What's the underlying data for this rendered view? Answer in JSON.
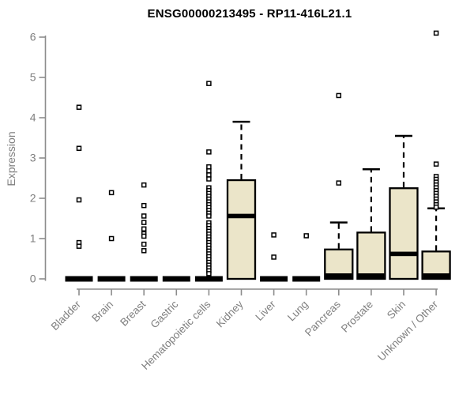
{
  "chart_data": {
    "type": "boxplot",
    "title": "ENSG00000213495 - RP11-416L21.1",
    "xlabel": "",
    "ylabel": "Expression",
    "ylim": [
      0,
      6
    ],
    "yticks": [
      0,
      1,
      2,
      3,
      4,
      5,
      6
    ],
    "grid": false,
    "legend": false,
    "outlier_marker": "open-square",
    "colors": {
      "box_fill": "#ebe5c9",
      "box_border": "#000000",
      "median": "#000000",
      "whisker": "#000000",
      "axis": "#8c8c8c",
      "tick_labels": "#7f7f7f",
      "title": "#000000",
      "outlier_fill": "#ffffff"
    },
    "categories": [
      "Bladder",
      "Brain",
      "Breast",
      "Gastric",
      "Hematopoietic cells",
      "Kidney",
      "Liver",
      "Lung",
      "Pancreas",
      "Prostate",
      "Skin",
      "Unknown / Other"
    ],
    "series": [
      {
        "label": "Bladder",
        "flat": true,
        "q1": 0,
        "median": 0,
        "q3": 0,
        "whisker_low": 0,
        "whisker_high": 0,
        "outliers": [
          4.26,
          3.24,
          1.96,
          0.9,
          0.81
        ]
      },
      {
        "label": "Brain",
        "flat": true,
        "q1": 0,
        "median": 0,
        "q3": 0,
        "whisker_low": 0,
        "whisker_high": 0,
        "outliers": [
          2.14,
          1.0
        ]
      },
      {
        "label": "Breast",
        "flat": true,
        "q1": 0,
        "median": 0,
        "q3": 0,
        "whisker_low": 0,
        "whisker_high": 0,
        "outliers": [
          2.33,
          1.82,
          1.56,
          1.4,
          1.24,
          1.12,
          1.06,
          0.86,
          0.7
        ]
      },
      {
        "label": "Gastric",
        "flat": true,
        "q1": 0,
        "median": 0,
        "q3": 0,
        "whisker_low": 0,
        "whisker_high": 0,
        "outliers": []
      },
      {
        "label": "Hematopoietic cells",
        "flat": true,
        "q1": 0,
        "median": 0,
        "q3": 0,
        "whisker_low": 0,
        "whisker_high": 0,
        "outliers": [
          4.85,
          3.15,
          2.78,
          2.68,
          2.58,
          2.48,
          2.26,
          2.19,
          2.12,
          2.05,
          1.98,
          1.91,
          1.84,
          1.77,
          1.7,
          1.63,
          1.56,
          1.39,
          1.32,
          1.25,
          1.18,
          1.11,
          1.04,
          0.97,
          0.9,
          0.83,
          0.76,
          0.69,
          0.62,
          0.55,
          0.48,
          0.41,
          0.34,
          0.27,
          0.2,
          0.13
        ]
      },
      {
        "label": "Kidney",
        "flat": false,
        "q1": 0,
        "median": 1.56,
        "q3": 2.45,
        "whisker_low": 0,
        "whisker_high": 3.9,
        "outliers": []
      },
      {
        "label": "Liver",
        "flat": true,
        "q1": 0,
        "median": 0,
        "q3": 0,
        "whisker_low": 0,
        "whisker_high": 0,
        "outliers": [
          1.09,
          0.54
        ]
      },
      {
        "label": "Lung",
        "flat": true,
        "q1": 0,
        "median": 0,
        "q3": 0,
        "whisker_low": 0,
        "whisker_high": 0,
        "outliers": [
          1.07
        ]
      },
      {
        "label": "Pancreas",
        "flat": false,
        "q1": 0,
        "median": 0.02,
        "q3": 0.73,
        "whisker_low": 0,
        "whisker_high": 1.4,
        "outliers": [
          4.55,
          2.38
        ]
      },
      {
        "label": "Prostate",
        "flat": false,
        "q1": 0,
        "median": 0.02,
        "q3": 1.15,
        "whisker_low": 0,
        "whisker_high": 2.72,
        "outliers": []
      },
      {
        "label": "Skin",
        "flat": false,
        "q1": 0,
        "median": 0.62,
        "q3": 2.25,
        "whisker_low": 0,
        "whisker_high": 3.55,
        "outliers": []
      },
      {
        "label": "Unknown / Other",
        "flat": false,
        "q1": 0,
        "median": 0.02,
        "q3": 0.68,
        "whisker_low": 0,
        "whisker_high": 1.75,
        "outliers": [
          6.1,
          2.85,
          2.54,
          2.47,
          2.4,
          2.33,
          2.26,
          2.19,
          2.12,
          2.05,
          1.98,
          1.91,
          1.84,
          1.78
        ]
      }
    ]
  }
}
